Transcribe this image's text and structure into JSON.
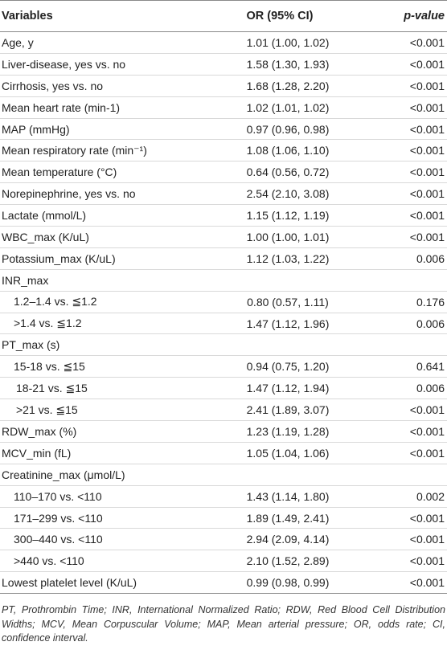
{
  "header": {
    "variables": "Variables",
    "or": "OR (95% CI)",
    "p": "p-value"
  },
  "rows": [
    {
      "variable": "Age, y",
      "or": "1.01 (1.00, 1.02)",
      "p": "<0.001",
      "indent": 0
    },
    {
      "variable": "Liver-disease, yes vs. no",
      "or": "1.58 (1.30, 1.93)",
      "p": "<0.001",
      "indent": 0
    },
    {
      "variable": "Cirrhosis, yes vs. no",
      "or": "1.68 (1.28, 2.20)",
      "p": "<0.001",
      "indent": 0
    },
    {
      "variable": "Mean heart rate (min-1)",
      "or": "1.02 (1.01, 1.02)",
      "p": "<0.001",
      "indent": 0
    },
    {
      "variable": "MAP (mmHg)",
      "or": "0.97 (0.96, 0.98)",
      "p": "<0.001",
      "indent": 0
    },
    {
      "variable": "Mean respiratory rate (min⁻¹)",
      "or": "1.08 (1.06, 1.10)",
      "p": "<0.001",
      "indent": 0
    },
    {
      "variable": "Mean temperature (°C)",
      "or": "0.64 (0.56, 0.72)",
      "p": "<0.001",
      "indent": 0
    },
    {
      "variable": "Norepinephrine, yes vs. no",
      "or": "2.54 (2.10, 3.08)",
      "p": "<0.001",
      "indent": 0
    },
    {
      "variable": "Lactate (mmol/L)",
      "or": "1.15 (1.12, 1.19)",
      "p": "<0.001",
      "indent": 0
    },
    {
      "variable": "WBC_max (K/uL)",
      "or": "1.00 (1.00, 1.01)",
      "p": "<0.001",
      "indent": 0
    },
    {
      "variable": "Potassium_max (K/uL)",
      "or": "1.12 (1.03, 1.22)",
      "p": "0.006",
      "indent": 0
    },
    {
      "variable": "INR_max",
      "or": "",
      "p": "",
      "indent": 0
    },
    {
      "variable": "1.2–1.4 vs. ≦1.2",
      "or": "0.80 (0.57, 1.11)",
      "p": "0.176",
      "indent": 1
    },
    {
      "variable": ">1.4 vs. ≦1.2",
      "or": "1.47 (1.12, 1.96)",
      "p": "0.006",
      "indent": 1
    },
    {
      "variable": "PT_max (s)",
      "or": "",
      "p": "",
      "indent": 0
    },
    {
      "variable": "15-18 vs. ≦15",
      "or": "0.94 (0.75, 1.20)",
      "p": "0.641",
      "indent": 1
    },
    {
      "variable": "18-21 vs. ≦15",
      "or": "1.47 (1.12, 1.94)",
      "p": "0.006",
      "indent": 2
    },
    {
      "variable": ">21 vs. ≦15",
      "or": "2.41 (1.89, 3.07)",
      "p": "<0.001",
      "indent": 2
    },
    {
      "variable": "RDW_max (%)",
      "or": "1.23 (1.19, 1.28)",
      "p": "<0.001",
      "indent": 0
    },
    {
      "variable": "MCV_min (fL)",
      "or": "1.05 (1.04, 1.06)",
      "p": "<0.001",
      "indent": 0
    },
    {
      "variable": "Creatinine_max (μmol/L)",
      "or": "",
      "p": "",
      "indent": 0
    },
    {
      "variable": "110–170 vs. <110",
      "or": "1.43 (1.14, 1.80)",
      "p": "0.002",
      "indent": 1
    },
    {
      "variable": "171–299 vs. <110",
      "or": "1.89 (1.49, 2.41)",
      "p": "<0.001",
      "indent": 1
    },
    {
      "variable": "300–440 vs. <110",
      "or": "2.94 (2.09, 4.14)",
      "p": "<0.001",
      "indent": 1
    },
    {
      "variable": ">440 vs. <110",
      "or": "2.10 (1.52, 2.89)",
      "p": "<0.001",
      "indent": 1
    },
    {
      "variable": "Lowest platelet level (K/uL)",
      "or": "0.99 (0.98, 0.99)",
      "p": "<0.001",
      "indent": 0
    }
  ],
  "footnote": "PT, Prothrombin Time; INR, International Normalized Ratio; RDW, Red Blood Cell Distribution Widths; MCV, Mean Corpuscular Volume; MAP, Mean arterial pressure; OR, odds rate; CI, confidence interval."
}
